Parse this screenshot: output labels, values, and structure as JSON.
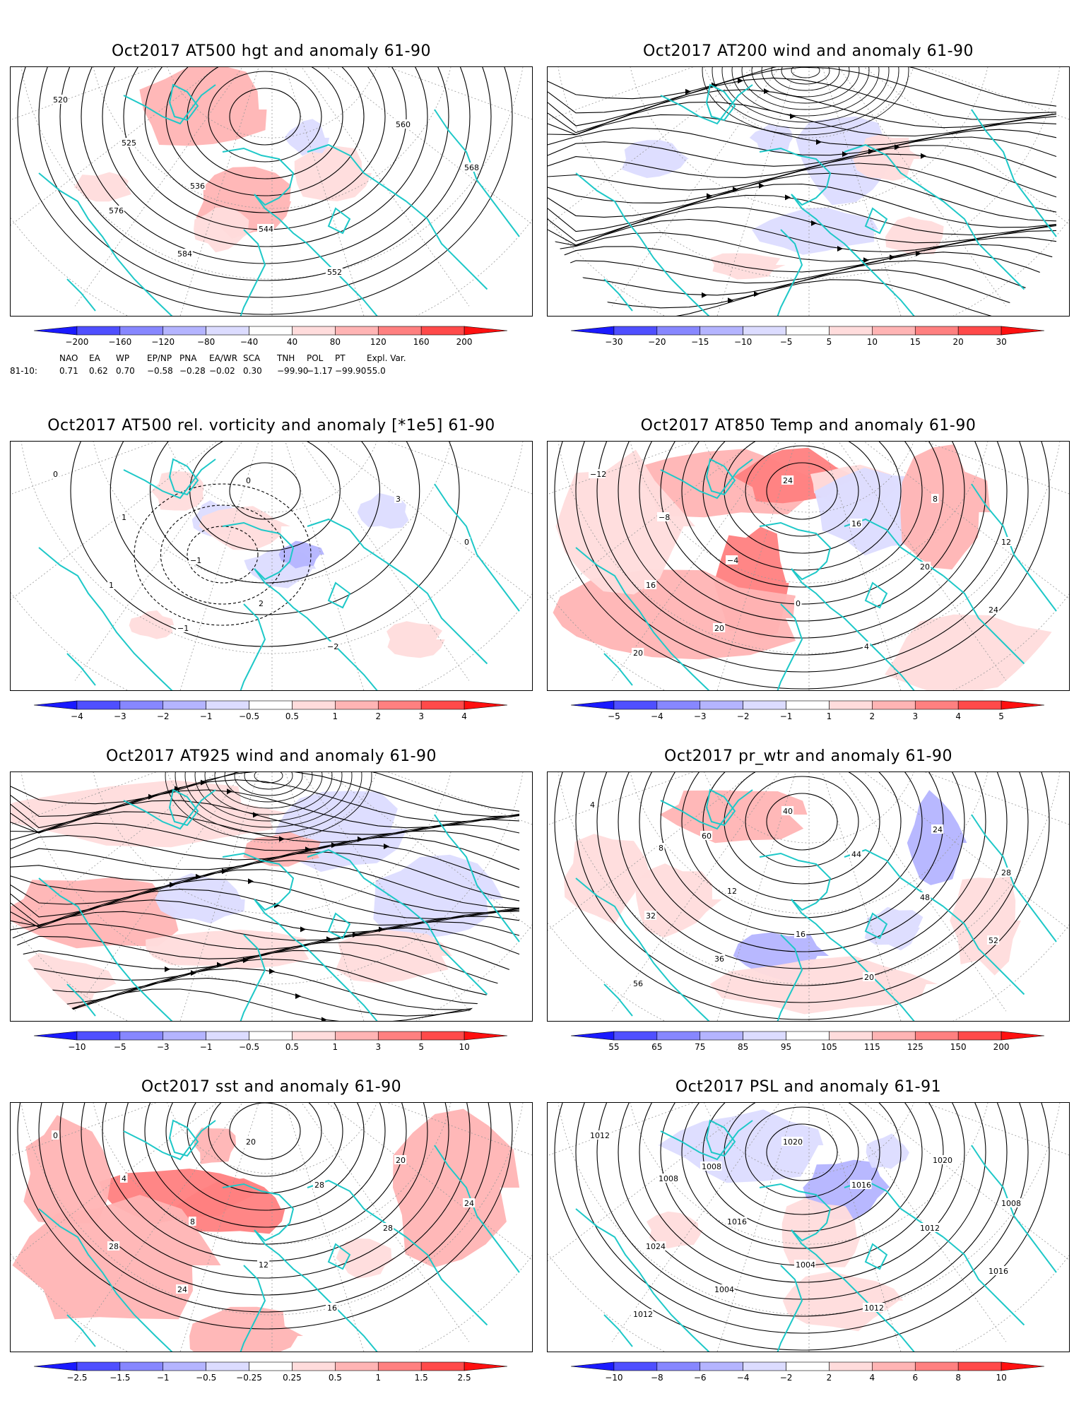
{
  "panels": [
    {
      "title": "Oct2017 AT500 hgt and anomaly 61-90",
      "kind": "hgt",
      "colorbar": {
        "labels": [
          "−200",
          "−160",
          "−120",
          "−80",
          "−40",
          "40",
          "80",
          "120",
          "160",
          "200"
        ]
      },
      "contour_labels": [
        "520",
        "525",
        "536",
        "544",
        "552",
        "560",
        "568",
        "576",
        "584"
      ],
      "indices": {
        "header": [
          "NAO",
          "EA",
          "WP",
          "EP/NP",
          "PNA",
          "EA/WR",
          "SCA",
          "TNH",
          "POL",
          "PT",
          "Expl. Var."
        ],
        "row_label": "81-10:",
        "values": [
          "0.71",
          "0.62",
          "0.70",
          "−0.58",
          "−0.28",
          "−0.02",
          "0.30",
          "−99.90",
          "−1.17",
          "−99.90",
          "55.0"
        ]
      }
    },
    {
      "title": "Oct2017 AT200 wind and anomaly 61-90",
      "kind": "stream",
      "colorbar": {
        "labels": [
          "−30",
          "−20",
          "−15",
          "−10",
          "−5",
          "5",
          "10",
          "15",
          "20",
          "30"
        ]
      }
    },
    {
      "title": "Oct2017 AT500 rel. vorticity and anomaly [*1e5] 61-90",
      "kind": "vort",
      "colorbar": {
        "labels": [
          "−4",
          "−3",
          "−2",
          "−1",
          "−0.5",
          "0.5",
          "1",
          "2",
          "3",
          "4"
        ]
      },
      "contour_labels": [
        "0",
        "1",
        "−1",
        "2",
        "−2",
        "3",
        "0",
        "1",
        "−1",
        "0"
      ]
    },
    {
      "title": "Oct2017 AT850 Temp and anomaly 61-90",
      "kind": "temp",
      "colorbar": {
        "labels": [
          "−5",
          "−4",
          "−3",
          "−2",
          "−1",
          "1",
          "2",
          "3",
          "4",
          "5"
        ]
      },
      "contour_labels": [
        "−12",
        "−8",
        "−4",
        "0",
        "4",
        "8",
        "12",
        "16",
        "20",
        "24",
        "16",
        "20",
        "24",
        "20"
      ]
    },
    {
      "title": "Oct2017 AT925 wind and anomaly 61-90",
      "kind": "stream2",
      "colorbar": {
        "labels": [
          "−10",
          "−5",
          "−3",
          "−1",
          "−0.5",
          "0.5",
          "1",
          "3",
          "5",
          "10"
        ]
      }
    },
    {
      "title": "Oct2017 pr_wtr and anomaly 61-90",
      "kind": "prwtr",
      "colorbar": {
        "labels": [
          "55",
          "65",
          "75",
          "85",
          "95",
          "105",
          "115",
          "125",
          "150",
          "200"
        ]
      },
      "contour_labels": [
        "4",
        "8",
        "12",
        "16",
        "20",
        "24",
        "28",
        "32",
        "36",
        "40",
        "44",
        "48",
        "52",
        "56",
        "60"
      ]
    },
    {
      "title": "Oct2017 sst and anomaly 61-90",
      "kind": "sst",
      "colorbar": {
        "labels": [
          "−2.5",
          "−1.5",
          "−1",
          "−0.5",
          "−0.25",
          "0.25",
          "0.5",
          "1",
          "1.5",
          "2.5"
        ]
      },
      "contour_labels": [
        "0",
        "4",
        "8",
        "12",
        "16",
        "20",
        "24",
        "28",
        "24",
        "20",
        "28",
        "28"
      ]
    },
    {
      "title": "Oct2017 PSL and anomaly 61-91",
      "kind": "psl",
      "colorbar": {
        "labels": [
          "−10",
          "−8",
          "−6",
          "−4",
          "−2",
          "2",
          "4",
          "6",
          "8",
          "10"
        ]
      },
      "contour_labels": [
        "1012",
        "1008",
        "1016",
        "1004",
        "1012",
        "1020",
        "1008",
        "1024",
        "1004",
        "1020",
        "1016",
        "1012",
        "1016",
        "1012",
        "1008"
      ]
    }
  ],
  "colors": {
    "cbar": [
      "#1a1aff",
      "#4f4fff",
      "#8787ff",
      "#b4b4ff",
      "#dcdcff",
      "#ffffff",
      "#ffdcdc",
      "#ffb4b4",
      "#ff8080",
      "#ff4a4a",
      "#ff1010"
    ],
    "coast": "#1ec8c8",
    "contour": "#000000"
  },
  "chart_data": [
    {
      "type": "heatmap",
      "title": "Oct2017 AT500 hgt and anomaly 61-90",
      "colorbar_levels": [
        -200,
        -160,
        -120,
        -80,
        -40,
        40,
        80,
        120,
        160,
        200
      ],
      "contour_values": [
        520,
        525,
        536,
        544,
        552,
        560,
        568,
        576,
        584
      ],
      "teleconnection_indices_81_10": {
        "NAO": 0.71,
        "EA": 0.62,
        "WP": 0.7,
        "EP/NP": -0.58,
        "PNA": -0.28,
        "EA/WR": -0.02,
        "SCA": 0.3,
        "TNH": -99.9,
        "POL": -1.17,
        "PT": -99.9,
        "Expl. Var.": 55.0
      }
    },
    {
      "type": "heatmap",
      "title": "Oct2017 AT200 wind and anomaly 61-90",
      "colorbar_levels": [
        -30,
        -20,
        -15,
        -10,
        -5,
        5,
        10,
        15,
        20,
        30
      ]
    },
    {
      "type": "heatmap",
      "title": "Oct2017 AT500 rel. vorticity and anomaly [*1e5] 61-90",
      "colorbar_levels": [
        -4,
        -3,
        -2,
        -1,
        -0.5,
        0.5,
        1,
        2,
        3,
        4
      ],
      "contour_values": [
        -2,
        -1,
        0,
        1,
        2,
        3
      ]
    },
    {
      "type": "heatmap",
      "title": "Oct2017 AT850 Temp and anomaly 61-90",
      "colorbar_levels": [
        -5,
        -4,
        -3,
        -2,
        -1,
        1,
        2,
        3,
        4,
        5
      ],
      "contour_values": [
        -12,
        -8,
        -4,
        0,
        4,
        8,
        12,
        16,
        20,
        24
      ]
    },
    {
      "type": "heatmap",
      "title": "Oct2017 AT925 wind and anomaly 61-90",
      "colorbar_levels": [
        -10,
        -5,
        -3,
        -1,
        -0.5,
        0.5,
        1,
        3,
        5,
        10
      ]
    },
    {
      "type": "heatmap",
      "title": "Oct2017 pr_wtr and anomaly 61-90",
      "colorbar_levels": [
        55,
        65,
        75,
        85,
        95,
        105,
        115,
        125,
        150,
        200
      ],
      "contour_values": [
        4,
        8,
        12,
        16,
        20,
        24,
        28,
        32,
        36,
        40,
        44,
        48,
        52,
        56,
        60
      ]
    },
    {
      "type": "heatmap",
      "title": "Oct2017 sst and anomaly 61-90",
      "colorbar_levels": [
        -2.5,
        -1.5,
        -1,
        -0.5,
        -0.25,
        0.25,
        0.5,
        1,
        1.5,
        2.5
      ],
      "contour_values": [
        0,
        4,
        8,
        12,
        16,
        20,
        24,
        28
      ]
    },
    {
      "type": "heatmap",
      "title": "Oct2017 PSL and anomaly 61-91",
      "colorbar_levels": [
        -10,
        -8,
        -6,
        -4,
        -2,
        2,
        4,
        6,
        8,
        10
      ],
      "contour_values": [
        1004,
        1008,
        1012,
        1016,
        1020,
        1024
      ]
    }
  ]
}
